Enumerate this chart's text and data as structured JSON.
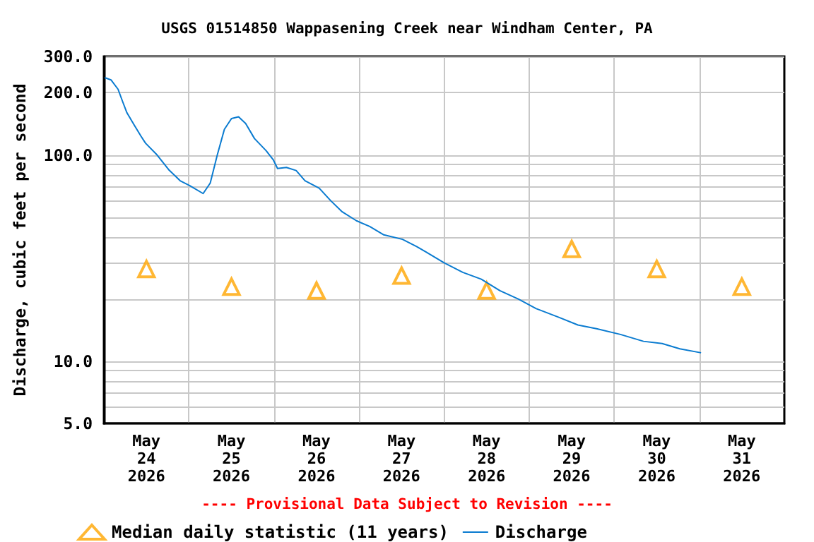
{
  "chart_data": {
    "type": "line",
    "title": "USGS 01514850 Wappasening Creek near Windham Center, PA",
    "ylabel": "Discharge, cubic feet per second",
    "annotations": [
      "---- Provisional Data Subject to Revision ----"
    ],
    "log": "y",
    "grid": true,
    "legend": "bottom left",
    "xlim": [
      "2026-05-24T00:00",
      "2026-06-01T00:00"
    ],
    "xticks": [
      {
        "value": "2026-05-24T12:00",
        "label": "May\n24\n2026"
      },
      {
        "value": "2026-05-25T00:00",
        "label": null
      },
      {
        "value": "2026-05-25T12:00",
        "label": "May\n25\n2026"
      },
      {
        "value": "2026-05-26T00:00",
        "label": null
      },
      {
        "value": "2026-05-26T12:00",
        "label": "May\n26\n2026"
      },
      {
        "value": "2026-05-27T00:00",
        "label": null
      },
      {
        "value": "2026-05-27T12:00",
        "label": "May\n27\n2026"
      },
      {
        "value": "2026-05-28T00:00",
        "label": null
      },
      {
        "value": "2026-05-28T12:00",
        "label": "May\n28\n2026"
      },
      {
        "value": "2026-05-29T00:00",
        "label": null
      },
      {
        "value": "2026-05-29T12:00",
        "label": "May\n29\n2026"
      },
      {
        "value": "2026-05-30T00:00",
        "label": null
      },
      {
        "value": "2026-05-30T12:00",
        "label": "May\n30\n2026"
      },
      {
        "value": "2026-05-31T00:00",
        "label": null
      },
      {
        "value": "2026-05-31T12:00",
        "label": "May\n31\n2026"
      }
    ],
    "ylim": [
      5,
      300
    ],
    "yticks": [
      {
        "value": 5,
        "label": "5.0"
      },
      {
        "value": 6,
        "label": null
      },
      {
        "value": 7,
        "label": null
      },
      {
        "value": 8,
        "label": null
      },
      {
        "value": 9,
        "label": null
      },
      {
        "value": 10,
        "label": "10.0"
      },
      {
        "value": 20,
        "label": null
      },
      {
        "value": 30,
        "label": null
      },
      {
        "value": 40,
        "label": null
      },
      {
        "value": 50,
        "label": null
      },
      {
        "value": 60,
        "label": null
      },
      {
        "value": 70,
        "label": null
      },
      {
        "value": 80,
        "label": null
      },
      {
        "value": 90,
        "label": null
      },
      {
        "value": 100,
        "label": "100.0"
      },
      {
        "value": 200,
        "label": "200.0"
      },
      {
        "value": 300,
        "label": "300.0"
      }
    ],
    "series": [
      {
        "name": "Median daily statistic (11 years)",
        "type": "scatter",
        "marker": "triangle",
        "color": "#ffa500",
        "x": [
          "2026-05-24T12:00",
          "2026-05-25T12:00",
          "2026-05-26T12:00",
          "2026-05-27T12:00",
          "2026-05-28T12:00",
          "2026-05-29T12:00",
          "2026-05-30T12:00",
          "2026-05-31T12:00"
        ],
        "values": [
          28,
          23,
          22,
          26,
          22,
          35,
          28,
          23
        ]
      },
      {
        "name": "Discharge",
        "marker": "none",
        "line_style": "solid",
        "color": "#0a7bd0",
        "x": [
          "2026-05-24T00:15",
          "2026-05-24T02:00",
          "2026-05-24T04:00",
          "2026-05-24T05:15",
          "2026-05-24T06:30",
          "2026-05-24T08:30",
          "2026-05-24T10:30",
          "2026-05-24T11:45",
          "2026-05-24T15:00",
          "2026-05-24T18:15",
          "2026-05-24T21:30",
          "2026-05-25T00:15",
          "2026-05-25T04:00",
          "2026-05-25T06:00",
          "2026-05-25T08:00",
          "2026-05-25T10:00",
          "2026-05-25T12:00",
          "2026-05-25T14:00",
          "2026-05-25T16:00",
          "2026-05-25T18:30",
          "2026-05-25T21:45",
          "2026-05-25T23:45",
          "2026-05-26T01:00",
          "2026-05-26T03:30",
          "2026-05-26T06:15",
          "2026-05-26T08:45",
          "2026-05-26T12:45",
          "2026-05-26T16:00",
          "2026-05-26T19:15",
          "2026-05-26T23:15",
          "2026-05-27T03:00",
          "2026-05-27T07:00",
          "2026-05-27T12:15",
          "2026-05-27T16:15",
          "2026-05-27T18:45",
          "2026-05-28T00:00",
          "2026-05-28T05:15",
          "2026-05-28T10:30",
          "2026-05-28T15:45",
          "2026-05-28T21:00",
          "2026-05-29T02:00",
          "2026-05-29T08:30",
          "2026-05-29T13:45",
          "2026-05-29T19:00",
          "2026-05-30T01:45",
          "2026-05-30T08:15",
          "2026-05-30T13:30",
          "2026-05-30T18:30",
          "2026-05-31T00:30"
        ],
        "values": [
          237,
          231,
          208,
          182,
          160,
          140,
          123,
          114,
          100,
          85,
          75,
          71,
          65,
          73,
          100,
          133,
          150,
          153,
          142,
          120,
          105,
          95,
          86,
          87,
          84,
          75,
          69,
          60,
          53,
          48,
          45,
          41,
          39,
          36,
          34,
          30,
          27,
          25,
          22,
          20,
          18,
          16.3,
          15,
          14.4,
          13.5,
          12.5,
          12.2,
          11.5,
          11
        ]
      }
    ]
  }
}
